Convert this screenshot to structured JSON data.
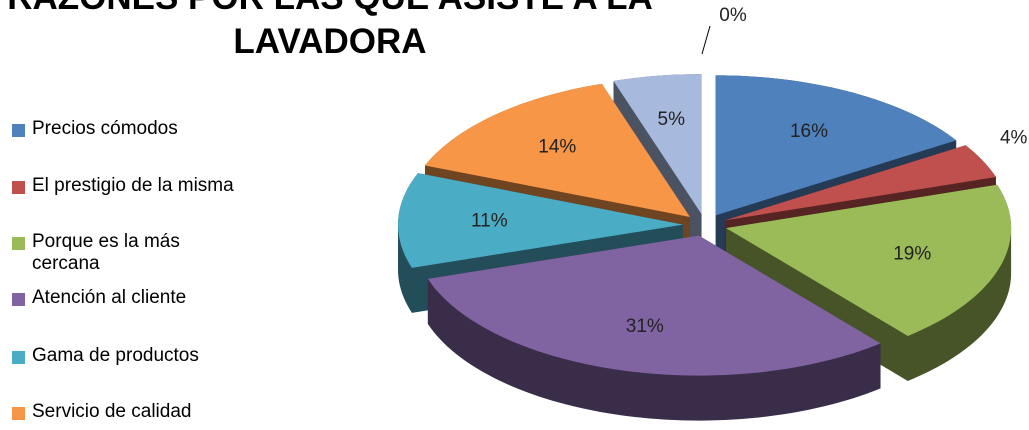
{
  "chart_data": {
    "type": "pie3d",
    "title": "RAZONES POR LAS QUE ASISTE A LA LAVADORA",
    "categories": [
      "Precios cómodos",
      "El prestigio de la misma",
      "Porque es la más cercana",
      "Atención al cliente",
      "Gama de productos",
      "Servicio de calidad",
      null,
      null
    ],
    "values": [
      16,
      4,
      19,
      31,
      11,
      14,
      5,
      0
    ],
    "value_labels": [
      "16%",
      "4%",
      "19%",
      "31%",
      "11%",
      "14%",
      "5%",
      "0%"
    ],
    "colors": [
      "#4f81bd",
      "#c0504d",
      "#9bbb59",
      "#8064a2",
      "#4bacc6",
      "#f79646",
      "#a7b9dd",
      "#dbe4f0"
    ],
    "legend": "left"
  }
}
